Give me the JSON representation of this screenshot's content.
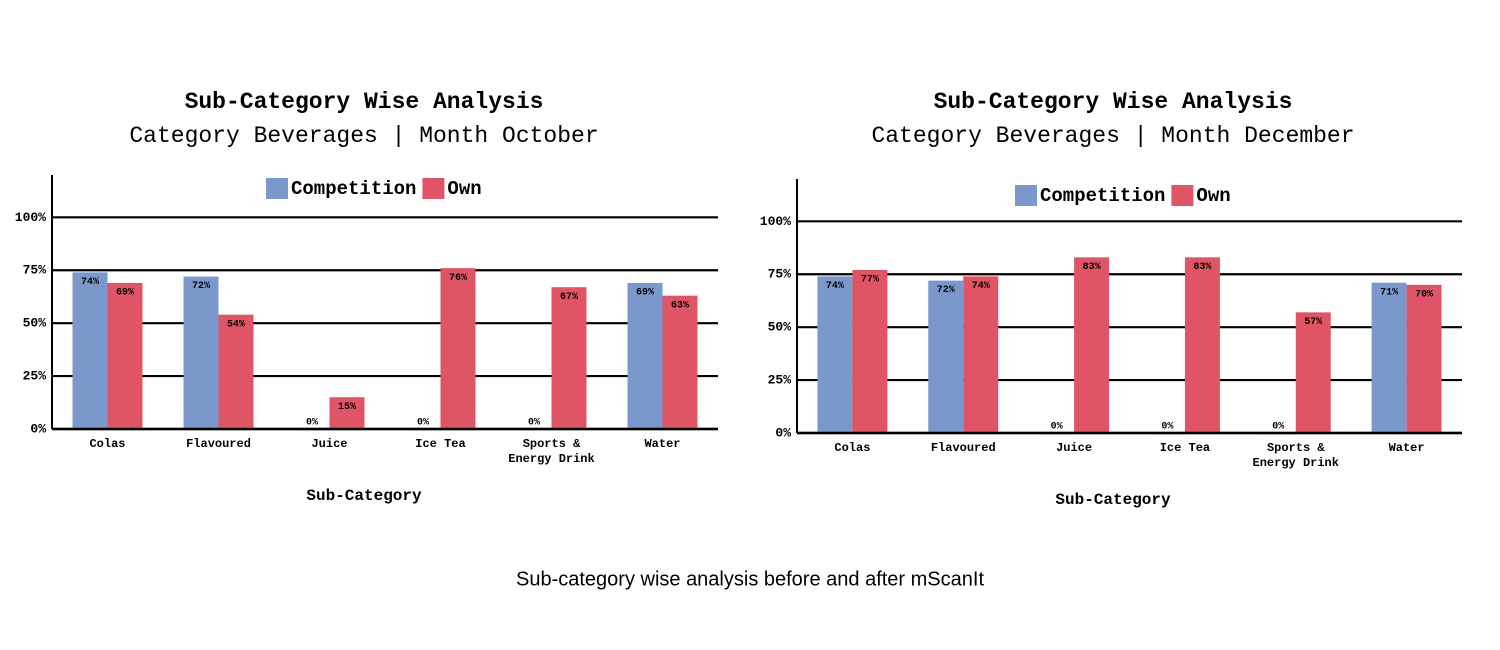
{
  "chart_data": [
    {
      "type": "bar",
      "title": "Sub-Category Wise Analysis",
      "subtitle": "Category Beverages | Month October",
      "x_label": "Sub-Category",
      "categories": [
        "Colas",
        "Flavoured",
        "Juice",
        "Ice Tea",
        "Sports & Energy Drink",
        "Water"
      ],
      "series": [
        {
          "name": "Competition",
          "color": "#7b98cc",
          "values": [
            74,
            72,
            0,
            0,
            0,
            69
          ],
          "value_labels": [
            "74%",
            "72%",
            "0%",
            "0%",
            "0%",
            "69%"
          ]
        },
        {
          "name": "Own",
          "color": "#e05565",
          "values": [
            69,
            54,
            15,
            76,
            67,
            63
          ],
          "value_labels": [
            "69%",
            "54%",
            "15%",
            "76%",
            "67%",
            "63%"
          ]
        }
      ],
      "ylim": [
        0,
        120
      ],
      "yticks": [
        {
          "value": 0,
          "label": "0%"
        },
        {
          "value": 25,
          "label": "25%"
        },
        {
          "value": 50,
          "label": "50%"
        },
        {
          "value": 75,
          "label": "75%"
        },
        {
          "value": 100,
          "label": "100%"
        }
      ],
      "grid": true,
      "legend": "top"
    },
    {
      "type": "bar",
      "title": "Sub-Category Wise Analysis",
      "subtitle": "Category Beverages | Month December",
      "x_label": "Sub-Category",
      "categories": [
        "Colas",
        "Flavoured",
        "Juice",
        "Ice Tea",
        "Sports & Energy Drink",
        "Water"
      ],
      "series": [
        {
          "name": "Competition",
          "color": "#7b98cc",
          "values": [
            74,
            72,
            0,
            0,
            0,
            71
          ],
          "value_labels": [
            "74%",
            "72%",
            "0%",
            "0%",
            "0%",
            "71%"
          ]
        },
        {
          "name": "Own",
          "color": "#e05565",
          "values": [
            77,
            74,
            83,
            83,
            57,
            70
          ],
          "value_labels": [
            "77%",
            "74%",
            "83%",
            "83%",
            "57%",
            "70%"
          ]
        }
      ],
      "ylim": [
        0,
        120
      ],
      "yticks": [
        {
          "value": 0,
          "label": "0%"
        },
        {
          "value": 25,
          "label": "25%"
        },
        {
          "value": 50,
          "label": "50%"
        },
        {
          "value": 75,
          "label": "75%"
        },
        {
          "value": 100,
          "label": "100%"
        }
      ],
      "grid": true,
      "legend": "top"
    }
  ],
  "caption": "Sub-category wise analysis before and after mScanIt"
}
